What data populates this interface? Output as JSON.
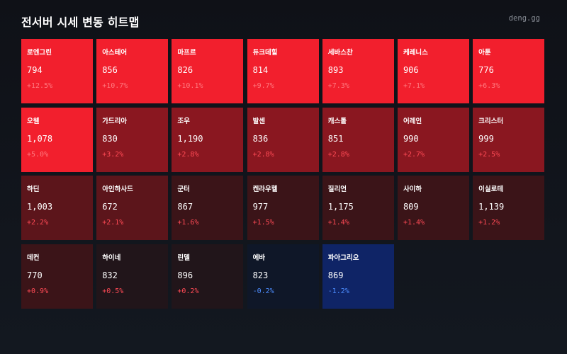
{
  "header": {
    "title": "전서버 시세 변동 히트맵",
    "brand": "deng.gg"
  },
  "colors": {
    "background": "#10141b",
    "up_strong": "#f21f2d",
    "up_medium": "#8a1720",
    "up_light": "#5c151b",
    "up_faint": "#3b1418",
    "neutral_up": "#21151a",
    "neutral_down": "#0f1728",
    "down_medium": "#0f2466",
    "text_up_on_strong": "#ff7a80",
    "text_up": "#ff4a55",
    "text_down": "#4d8dff"
  },
  "heatmap": {
    "tiles": [
      {
        "name": "로엔그린",
        "price": "794",
        "change": "+12.5%"
      },
      {
        "name": "아스테어",
        "price": "856",
        "change": "+10.7%"
      },
      {
        "name": "마프르",
        "price": "826",
        "change": "+10.1%"
      },
      {
        "name": "듀크데힐",
        "price": "814",
        "change": "+9.7%"
      },
      {
        "name": "세바스찬",
        "price": "893",
        "change": "+7.3%"
      },
      {
        "name": "케레니스",
        "price": "906",
        "change": "+7.1%"
      },
      {
        "name": "아툰",
        "price": "776",
        "change": "+6.3%"
      },
      {
        "name": "오웬",
        "price": "1,078",
        "change": "+5.0%"
      },
      {
        "name": "가드리아",
        "price": "830",
        "change": "+3.2%"
      },
      {
        "name": "조우",
        "price": "1,190",
        "change": "+2.8%"
      },
      {
        "name": "발센",
        "price": "836",
        "change": "+2.8%"
      },
      {
        "name": "캐스톨",
        "price": "851",
        "change": "+2.8%"
      },
      {
        "name": "어레인",
        "price": "990",
        "change": "+2.7%"
      },
      {
        "name": "크리스터",
        "price": "999",
        "change": "+2.5%"
      },
      {
        "name": "하딘",
        "price": "1,003",
        "change": "+2.2%"
      },
      {
        "name": "아인하사드",
        "price": "672",
        "change": "+2.1%"
      },
      {
        "name": "군터",
        "price": "867",
        "change": "+1.6%"
      },
      {
        "name": "켄라우헬",
        "price": "977",
        "change": "+1.5%"
      },
      {
        "name": "질리언",
        "price": "1,175",
        "change": "+1.4%"
      },
      {
        "name": "사이하",
        "price": "809",
        "change": "+1.4%"
      },
      {
        "name": "이실로테",
        "price": "1,139",
        "change": "+1.2%"
      },
      {
        "name": "데컨",
        "price": "770",
        "change": "+0.9%"
      },
      {
        "name": "하이네",
        "price": "832",
        "change": "+0.5%"
      },
      {
        "name": "린델",
        "price": "896",
        "change": "+0.2%"
      },
      {
        "name": "에바",
        "price": "823",
        "change": "-0.2%"
      },
      {
        "name": "파아그리오",
        "price": "869",
        "change": "-1.2%"
      }
    ]
  }
}
